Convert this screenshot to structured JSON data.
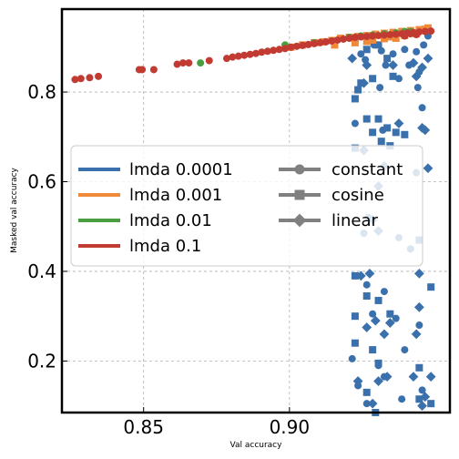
{
  "chart_data": {
    "type": "scatter",
    "xlabel": "Val accuracy",
    "ylabel": "Masked val accuracy",
    "xlim": [
      0.822,
      0.955
    ],
    "ylim": [
      0.085,
      0.985
    ],
    "xticks": [
      0.85,
      0.9
    ],
    "xtick_labels": [
      "0.85",
      "0.90"
    ],
    "yticks": [
      0.2,
      0.4,
      0.6,
      0.8
    ],
    "ytick_labels": [
      "0.2",
      "0.4",
      "0.6",
      "0.8"
    ],
    "grid": true,
    "legend_placement": "center-left",
    "colors": {
      "lmda 0.0001": "#3a70ab",
      "lmda 0.001": "#ef8a3a",
      "lmda 0.01": "#4a9e3f",
      "lmda 0.1": "#c23b33",
      "schedule": "#808080"
    },
    "legend": {
      "lambdas": [
        {
          "label": "lmda 0.0001",
          "color": "#3a70ab"
        },
        {
          "label": "lmda 0.001",
          "color": "#ef8a3a"
        },
        {
          "label": "lmda 0.01",
          "color": "#4a9e3f"
        },
        {
          "label": "lmda 0.1",
          "color": "#c23b33"
        }
      ],
      "schedules": [
        {
          "label": "constant",
          "marker": "circle"
        },
        {
          "label": "cosine",
          "marker": "square"
        },
        {
          "label": "linear",
          "marker": "diamond"
        }
      ]
    },
    "series": [
      {
        "lambda": "lmda 0.0001",
        "schedule": "constant",
        "marker": "circle",
        "color": "#3a70ab",
        "points": [
          [
            0.9245,
            0.885
          ],
          [
            0.926,
            0.872
          ],
          [
            0.929,
            0.905
          ],
          [
            0.9315,
            0.892
          ],
          [
            0.933,
            0.86
          ],
          [
            0.9355,
            0.885
          ],
          [
            0.9375,
            0.83
          ],
          [
            0.9395,
            0.895
          ],
          [
            0.941,
            0.86
          ],
          [
            0.9435,
            0.89
          ],
          [
            0.9445,
            0.845
          ],
          [
            0.946,
            0.905
          ],
          [
            0.9475,
            0.925
          ],
          [
            0.931,
            0.81
          ],
          [
            0.944,
            0.81
          ],
          [
            0.9225,
            0.73
          ],
          [
            0.932,
            0.715
          ],
          [
            0.9455,
            0.765
          ],
          [
            0.927,
            0.52
          ],
          [
            0.9255,
            0.485
          ],
          [
            0.9415,
            0.45
          ],
          [
            0.9375,
            0.475
          ],
          [
            0.9265,
            0.37
          ],
          [
            0.9325,
            0.355
          ],
          [
            0.9365,
            0.295
          ],
          [
            0.9285,
            0.305
          ],
          [
            0.9445,
            0.28
          ],
          [
            0.9215,
            0.205
          ],
          [
            0.9305,
            0.19
          ],
          [
            0.9395,
            0.225
          ],
          [
            0.9235,
            0.145
          ],
          [
            0.9455,
            0.135
          ],
          [
            0.9325,
            0.165
          ],
          [
            0.9385,
            0.115
          ],
          [
            0.9265,
            0.105
          ],
          [
            0.9435,
            0.62
          ]
        ]
      },
      {
        "lambda": "lmda 0.0001",
        "schedule": "cosine",
        "marker": "square",
        "color": "#3a70ab",
        "points": [
          [
            0.9225,
            0.92
          ],
          [
            0.9265,
            0.895
          ],
          [
            0.9305,
            0.905
          ],
          [
            0.9335,
            0.875
          ],
          [
            0.9355,
            0.835
          ],
          [
            0.9285,
            0.83
          ],
          [
            0.9245,
            0.82
          ],
          [
            0.9235,
            0.805
          ],
          [
            0.9225,
            0.785
          ],
          [
            0.9265,
            0.74
          ],
          [
            0.9305,
            0.74
          ],
          [
            0.9335,
            0.72
          ],
          [
            0.9365,
            0.71
          ],
          [
            0.9395,
            0.705
          ],
          [
            0.9285,
            0.71
          ],
          [
            0.9225,
            0.675
          ],
          [
            0.9315,
            0.69
          ],
          [
            0.9345,
            0.68
          ],
          [
            0.9225,
            0.3
          ],
          [
            0.9265,
            0.345
          ],
          [
            0.9305,
            0.335
          ],
          [
            0.9345,
            0.305
          ],
          [
            0.9445,
            0.47
          ],
          [
            0.9485,
            0.365
          ],
          [
            0.9225,
            0.24
          ],
          [
            0.9285,
            0.225
          ],
          [
            0.9305,
            0.195
          ],
          [
            0.9445,
            0.185
          ],
          [
            0.9445,
            0.115
          ],
          [
            0.9485,
            0.105
          ],
          [
            0.9295,
            0.085
          ],
          [
            0.9265,
            0.13
          ],
          [
            0.9225,
            0.39
          ]
        ]
      },
      {
        "lambda": "lmda 0.0001",
        "schedule": "linear",
        "marker": "diamond",
        "color": "#3a70ab",
        "points": [
          [
            0.9215,
            0.875
          ],
          [
            0.9265,
            0.86
          ],
          [
            0.9355,
            0.86
          ],
          [
            0.9425,
            0.865
          ],
          [
            0.9435,
            0.835
          ],
          [
            0.9455,
            0.855
          ],
          [
            0.9475,
            0.875
          ],
          [
            0.9255,
            0.82
          ],
          [
            0.9455,
            0.72
          ],
          [
            0.9465,
            0.715
          ],
          [
            0.9375,
            0.73
          ],
          [
            0.9255,
            0.67
          ],
          [
            0.9325,
            0.635
          ],
          [
            0.9475,
            0.63
          ],
          [
            0.9305,
            0.59
          ],
          [
            0.9285,
            0.515
          ],
          [
            0.9305,
            0.49
          ],
          [
            0.9275,
            0.395
          ],
          [
            0.9245,
            0.39
          ],
          [
            0.9445,
            0.32
          ],
          [
            0.9435,
            0.26
          ],
          [
            0.9345,
            0.285
          ],
          [
            0.9325,
            0.26
          ],
          [
            0.9265,
            0.275
          ],
          [
            0.9295,
            0.29
          ],
          [
            0.9445,
            0.395
          ],
          [
            0.9305,
            0.155
          ],
          [
            0.9335,
            0.165
          ],
          [
            0.9235,
            0.155
          ],
          [
            0.9425,
            0.165
          ],
          [
            0.9465,
            0.12
          ],
          [
            0.9485,
            0.165
          ],
          [
            0.9285,
            0.105
          ],
          [
            0.9455,
            0.1
          ]
        ]
      },
      {
        "lambda": "lmda 0.001",
        "schedule": "all",
        "marker": "square",
        "color": "#ef8a3a",
        "points": [
          [
            0.9005,
            0.9
          ],
          [
            0.9045,
            0.905
          ],
          [
            0.9085,
            0.91
          ],
          [
            0.9115,
            0.912
          ],
          [
            0.9145,
            0.915
          ],
          [
            0.9175,
            0.92
          ],
          [
            0.9205,
            0.922
          ],
          [
            0.9235,
            0.924
          ],
          [
            0.9265,
            0.926
          ],
          [
            0.9295,
            0.929
          ],
          [
            0.9325,
            0.931
          ],
          [
            0.9355,
            0.933
          ],
          [
            0.9385,
            0.935
          ],
          [
            0.9415,
            0.937
          ],
          [
            0.9445,
            0.939
          ],
          [
            0.9465,
            0.94
          ],
          [
            0.9475,
            0.943
          ],
          [
            0.9435,
            0.93
          ],
          [
            0.9395,
            0.926
          ],
          [
            0.9345,
            0.923
          ],
          [
            0.9325,
            0.919
          ],
          [
            0.9285,
            0.916
          ],
          [
            0.9265,
            0.913
          ],
          [
            0.9225,
            0.91
          ],
          [
            0.9365,
            0.92
          ],
          [
            0.9155,
            0.905
          ]
        ]
      },
      {
        "lambda": "lmda 0.01",
        "schedule": "all",
        "marker": "circle",
        "color": "#4a9e3f",
        "points": [
          [
            0.8695,
            0.865
          ],
          [
            0.8985,
            0.905
          ],
          [
            0.9085,
            0.91
          ],
          [
            0.9205,
            0.922
          ],
          [
            0.9245,
            0.925
          ],
          [
            0.9285,
            0.927
          ],
          [
            0.9325,
            0.93
          ],
          [
            0.9365,
            0.932
          ],
          [
            0.9395,
            0.935
          ],
          [
            0.9415,
            0.935
          ]
        ]
      },
      {
        "lambda": "lmda 0.1",
        "schedule": "all",
        "marker": "circle",
        "color": "#c23b33",
        "points": [
          [
            0.8265,
            0.828
          ],
          [
            0.8285,
            0.83
          ],
          [
            0.8315,
            0.832
          ],
          [
            0.8345,
            0.835
          ],
          [
            0.8485,
            0.85
          ],
          [
            0.8495,
            0.85
          ],
          [
            0.8535,
            0.85
          ],
          [
            0.8615,
            0.862
          ],
          [
            0.8635,
            0.865
          ],
          [
            0.8655,
            0.865
          ],
          [
            0.8725,
            0.87
          ],
          [
            0.8785,
            0.875
          ],
          [
            0.8805,
            0.878
          ],
          [
            0.8825,
            0.88
          ],
          [
            0.8845,
            0.882
          ],
          [
            0.8865,
            0.884
          ],
          [
            0.8885,
            0.886
          ],
          [
            0.8905,
            0.889
          ],
          [
            0.8925,
            0.891
          ],
          [
            0.8945,
            0.893
          ],
          [
            0.8965,
            0.895
          ],
          [
            0.8985,
            0.897
          ],
          [
            0.9005,
            0.9
          ],
          [
            0.9025,
            0.902
          ],
          [
            0.9045,
            0.904
          ],
          [
            0.9065,
            0.906
          ],
          [
            0.9085,
            0.908
          ],
          [
            0.9105,
            0.91
          ],
          [
            0.9125,
            0.912
          ],
          [
            0.9145,
            0.914
          ],
          [
            0.9165,
            0.916
          ],
          [
            0.9185,
            0.918
          ],
          [
            0.9205,
            0.92
          ],
          [
            0.9225,
            0.922
          ],
          [
            0.9245,
            0.923
          ],
          [
            0.9265,
            0.924
          ],
          [
            0.9285,
            0.925
          ],
          [
            0.9305,
            0.926
          ],
          [
            0.9325,
            0.927
          ],
          [
            0.9345,
            0.928
          ],
          [
            0.9365,
            0.929
          ],
          [
            0.9385,
            0.93
          ],
          [
            0.9405,
            0.932
          ],
          [
            0.9425,
            0.933
          ],
          [
            0.9445,
            0.934
          ],
          [
            0.9465,
            0.935
          ],
          [
            0.9485,
            0.936
          ],
          [
            0.9415,
            0.93
          ],
          [
            0.9395,
            0.925
          ],
          [
            0.9435,
            0.928
          ]
        ]
      }
    ]
  }
}
